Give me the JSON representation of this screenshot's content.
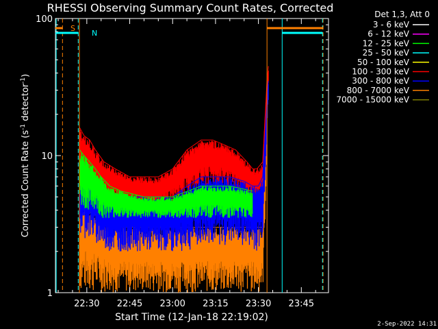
{
  "chart_data": {
    "type": "line",
    "title": "RHESSI Observing Summary Count Rates, Corrected",
    "xlabel": "Start Time (12-Jan-18 22:19:02)",
    "ylabel_main": "Corrected Count Rate (s",
    "ylabel_sup1": "-1",
    "ylabel_mid": " detector",
    "ylabel_sup2": "-1",
    "ylabel_end": ")",
    "yscale": "log",
    "ylim": [
      1,
      100
    ],
    "xlim": [
      "22:19:02",
      "23:54:30"
    ],
    "xticks": [
      "22:30",
      "22:45",
      "23:00",
      "23:15",
      "23:30",
      "23:45"
    ],
    "xtick_minutes": [
      30,
      45,
      60,
      75,
      90,
      105
    ],
    "yticks": [
      "1",
      "10",
      "100"
    ],
    "ytick_values": [
      1,
      10,
      100
    ],
    "x_minutes_start": 19.03,
    "x_minutes_end": 114.5,
    "legend_header": "Det 1,3, Att 0",
    "series": [
      {
        "name": "3 - 6 keV",
        "color": "#ffffff"
      },
      {
        "name": "6 - 12 keV",
        "color": "#ff00ff"
      },
      {
        "name": "12 - 25 keV",
        "color": "#00ff00"
      },
      {
        "name": "25 - 50 keV",
        "color": "#00ffff"
      },
      {
        "name": "50 - 100 keV",
        "color": "#ffff00"
      },
      {
        "name": "100 - 300 keV",
        "color": "#ff0000"
      },
      {
        "name": "300 - 800 keV",
        "color": "#0000ff"
      },
      {
        "name": "800 - 7000 keV",
        "color": "#ff8000"
      },
      {
        "name": "7000 - 15000 keV",
        "color": "#808000"
      }
    ],
    "envelopes": [
      {
        "series": "100 - 300 keV",
        "color": "#ff0000",
        "x": [
          27.5,
          29,
          31,
          33,
          36,
          40,
          45,
          50,
          55,
          60,
          65,
          70,
          74,
          78,
          82,
          86,
          88,
          89.5,
          91.5,
          93,
          93.5
        ],
        "y_low": [
          5,
          6,
          6,
          5,
          5,
          4.5,
          4.5,
          4,
          4,
          4.5,
          5,
          5.5,
          6,
          6,
          5.5,
          5,
          4.5,
          4.5,
          5,
          20,
          30
        ],
        "y_high": [
          16,
          14,
          13,
          11,
          9,
          8,
          7,
          7,
          7,
          8,
          11,
          13,
          13,
          12,
          11,
          9,
          8,
          8,
          9,
          35,
          45
        ]
      },
      {
        "series": "300 - 800 keV",
        "color": "#0000ff",
        "x": [
          27.5,
          30,
          33,
          36,
          40,
          45,
          50,
          55,
          60,
          65,
          70,
          75,
          80,
          85,
          88,
          90,
          91.5,
          93,
          93.5
        ],
        "y_low": [
          2.5,
          2.5,
          2.3,
          2,
          2,
          2,
          2,
          2,
          2,
          2,
          2.2,
          2.2,
          2.2,
          2.2,
          2,
          2,
          2.5,
          15,
          25
        ],
        "y_high": [
          8,
          7.5,
          6.5,
          5.5,
          5,
          5,
          5,
          5,
          5,
          6,
          7,
          7,
          7,
          6.5,
          6,
          6,
          7,
          25,
          35
        ]
      },
      {
        "series": "12 - 25 keV",
        "color": "#00ff00",
        "x": [
          27.5,
          29,
          31,
          33,
          35,
          38,
          42,
          50,
          60,
          70,
          80,
          88
        ],
        "y_low": [
          4,
          4,
          4,
          4,
          3.5,
          3.5,
          3.5,
          3.5,
          3.5,
          3.5,
          3.5,
          3.5
        ],
        "y_high": [
          11,
          10,
          9,
          8,
          7,
          6,
          5.5,
          5,
          5,
          6,
          6,
          5.5
        ]
      },
      {
        "series": "800 - 7000 keV",
        "color": "#ff8000",
        "x": [
          27.5,
          30,
          35,
          40,
          45,
          50,
          55,
          60,
          65,
          70,
          75,
          80,
          85,
          88,
          91.5,
          93
        ],
        "y_low": [
          1,
          1,
          1,
          1,
          1,
          1,
          1,
          1,
          1,
          1,
          1,
          1,
          1,
          1,
          1,
          10
        ],
        "y_high": [
          4,
          4,
          3.5,
          3,
          3,
          3,
          3,
          3,
          3,
          3,
          3,
          3,
          3,
          3,
          3,
          20
        ]
      }
    ],
    "markers": [
      {
        "label": "S",
        "color": "#ff8000"
      },
      {
        "label": "N",
        "color": "#00ffff"
      }
    ],
    "footer_date": "2-Sep-2022 14:31"
  }
}
